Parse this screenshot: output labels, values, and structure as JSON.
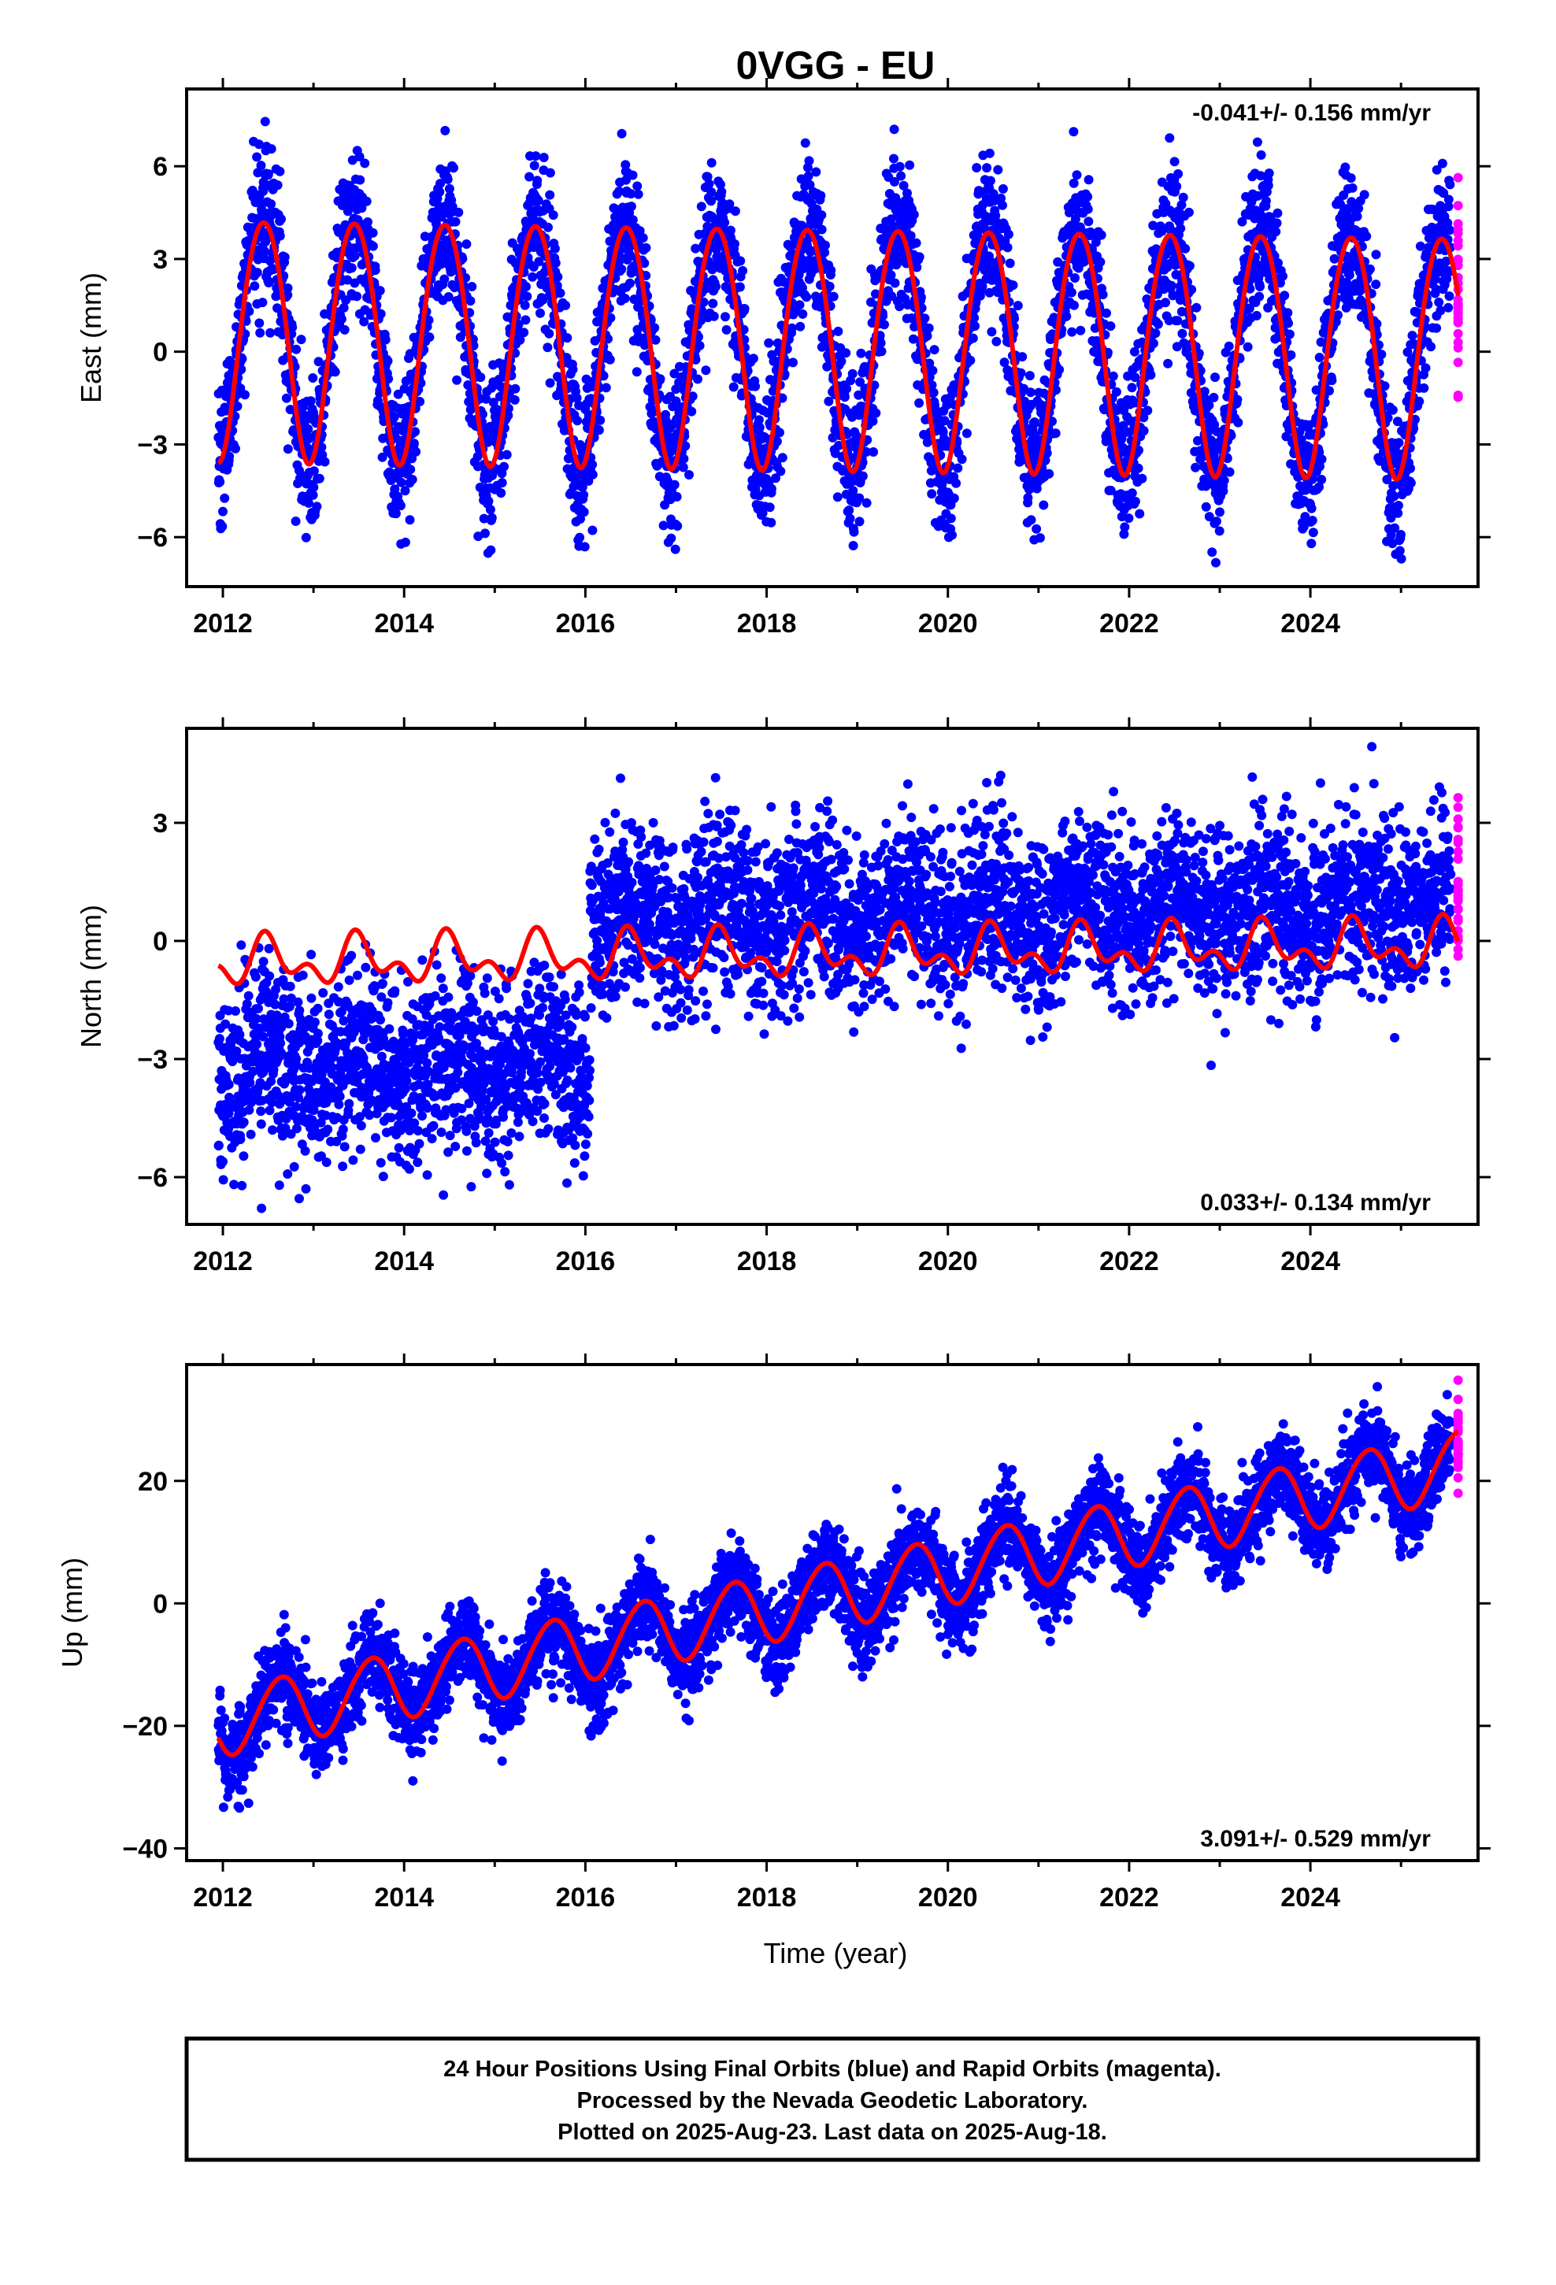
{
  "title": "0VGG - EU",
  "xlabel": "Time (year)",
  "caption": {
    "line1": "24 Hour Positions Using Final Orbits (blue) and Rapid Orbits (magenta).",
    "line2": "Processed by the Nevada Geodetic Laboratory.",
    "line3": "Plotted on 2025-Aug-23. Last data on 2025-Aug-18."
  },
  "colors": {
    "final_orbits": "#0000ff",
    "rapid_orbits": "#ff00ff",
    "model_fit": "#ff0000",
    "frame": "#000000"
  },
  "chart_data": [
    {
      "type": "scatter",
      "component": "East",
      "ylabel": "East (mm)",
      "rate_label": "-0.041+/- 0.156 mm/yr",
      "rate_position": "top-right",
      "xlim": [
        2011.6,
        2025.85
      ],
      "ylim": [
        -7.6,
        8.5
      ],
      "xticks": [
        2012,
        2014,
        2016,
        2018,
        2020,
        2022,
        2024
      ],
      "xticklabels": [
        "2012",
        "2014",
        "2016",
        "2018",
        "2020",
        "2022",
        "2024"
      ],
      "yticks": [
        -6,
        -3,
        0,
        3,
        6
      ],
      "yticklabels": [
        "−6",
        "−3",
        "0",
        "3",
        "6"
      ],
      "data_start": 2011.95,
      "rapid_start": 2025.55,
      "data_end": 2025.63,
      "model": {
        "offset": 0.55,
        "rate_mm_per_yr": -0.041,
        "annual_amp": 3.9,
        "annual_peak": 2012.45,
        "semiannual_amp": 0.25,
        "semiannual_peak": 2012.2,
        "steps": []
      },
      "scatter_sd": 1.2
    },
    {
      "type": "scatter",
      "component": "North",
      "ylabel": "North (mm)",
      "rate_label": "0.033+/- 0.134 mm/yr",
      "rate_position": "bottom-right",
      "xlim": [
        2011.6,
        2025.85
      ],
      "ylim": [
        -7.2,
        5.4
      ],
      "xticks": [
        2012,
        2014,
        2016,
        2018,
        2020,
        2022,
        2024
      ],
      "xticklabels": [
        "2012",
        "2014",
        "2016",
        "2018",
        "2020",
        "2022",
        "2024"
      ],
      "yticks": [
        -6,
        -3,
        0,
        3
      ],
      "yticklabels": [
        "−6",
        "−3",
        "0",
        "3"
      ],
      "data_start": 2011.95,
      "rapid_start": 2025.55,
      "data_end": 2025.63,
      "model": {
        "offset": -0.55,
        "rate_mm_per_yr": 0.033,
        "annual_amp": 0.45,
        "annual_peak": 2012.5,
        "semiannual_amp": 0.35,
        "semiannual_peak": 2012.45,
        "steps": []
      },
      "data_steps": [
        {
          "year": 2016.05,
          "size": 3.7
        }
      ],
      "data_offset": -3.0,
      "scatter_sd": 1.1
    },
    {
      "type": "scatter",
      "component": "Up",
      "ylabel": "Up (mm)",
      "rate_label": "3.091+/- 0.529 mm/yr",
      "rate_position": "bottom-right",
      "xlim": [
        2011.6,
        2025.85
      ],
      "ylim": [
        -42,
        39
      ],
      "xticks": [
        2012,
        2014,
        2016,
        2018,
        2020,
        2022,
        2024
      ],
      "xticklabels": [
        "2012",
        "2014",
        "2016",
        "2018",
        "2020",
        "2022",
        "2024"
      ],
      "yticks": [
        -40,
        -20,
        0,
        20
      ],
      "yticklabels": [
        "−40",
        "−20",
        "0",
        "20"
      ],
      "data_start": 2011.95,
      "rapid_start": 2025.55,
      "data_end": 2025.63,
      "model": {
        "offset": -19.5,
        "rate_mm_per_yr": 3.091,
        "annual_amp": 5.5,
        "annual_peak": 2012.63,
        "semiannual_amp": 0.4,
        "semiannual_peak": 2012.3,
        "steps": []
      },
      "scatter_sd": 3.6
    }
  ]
}
